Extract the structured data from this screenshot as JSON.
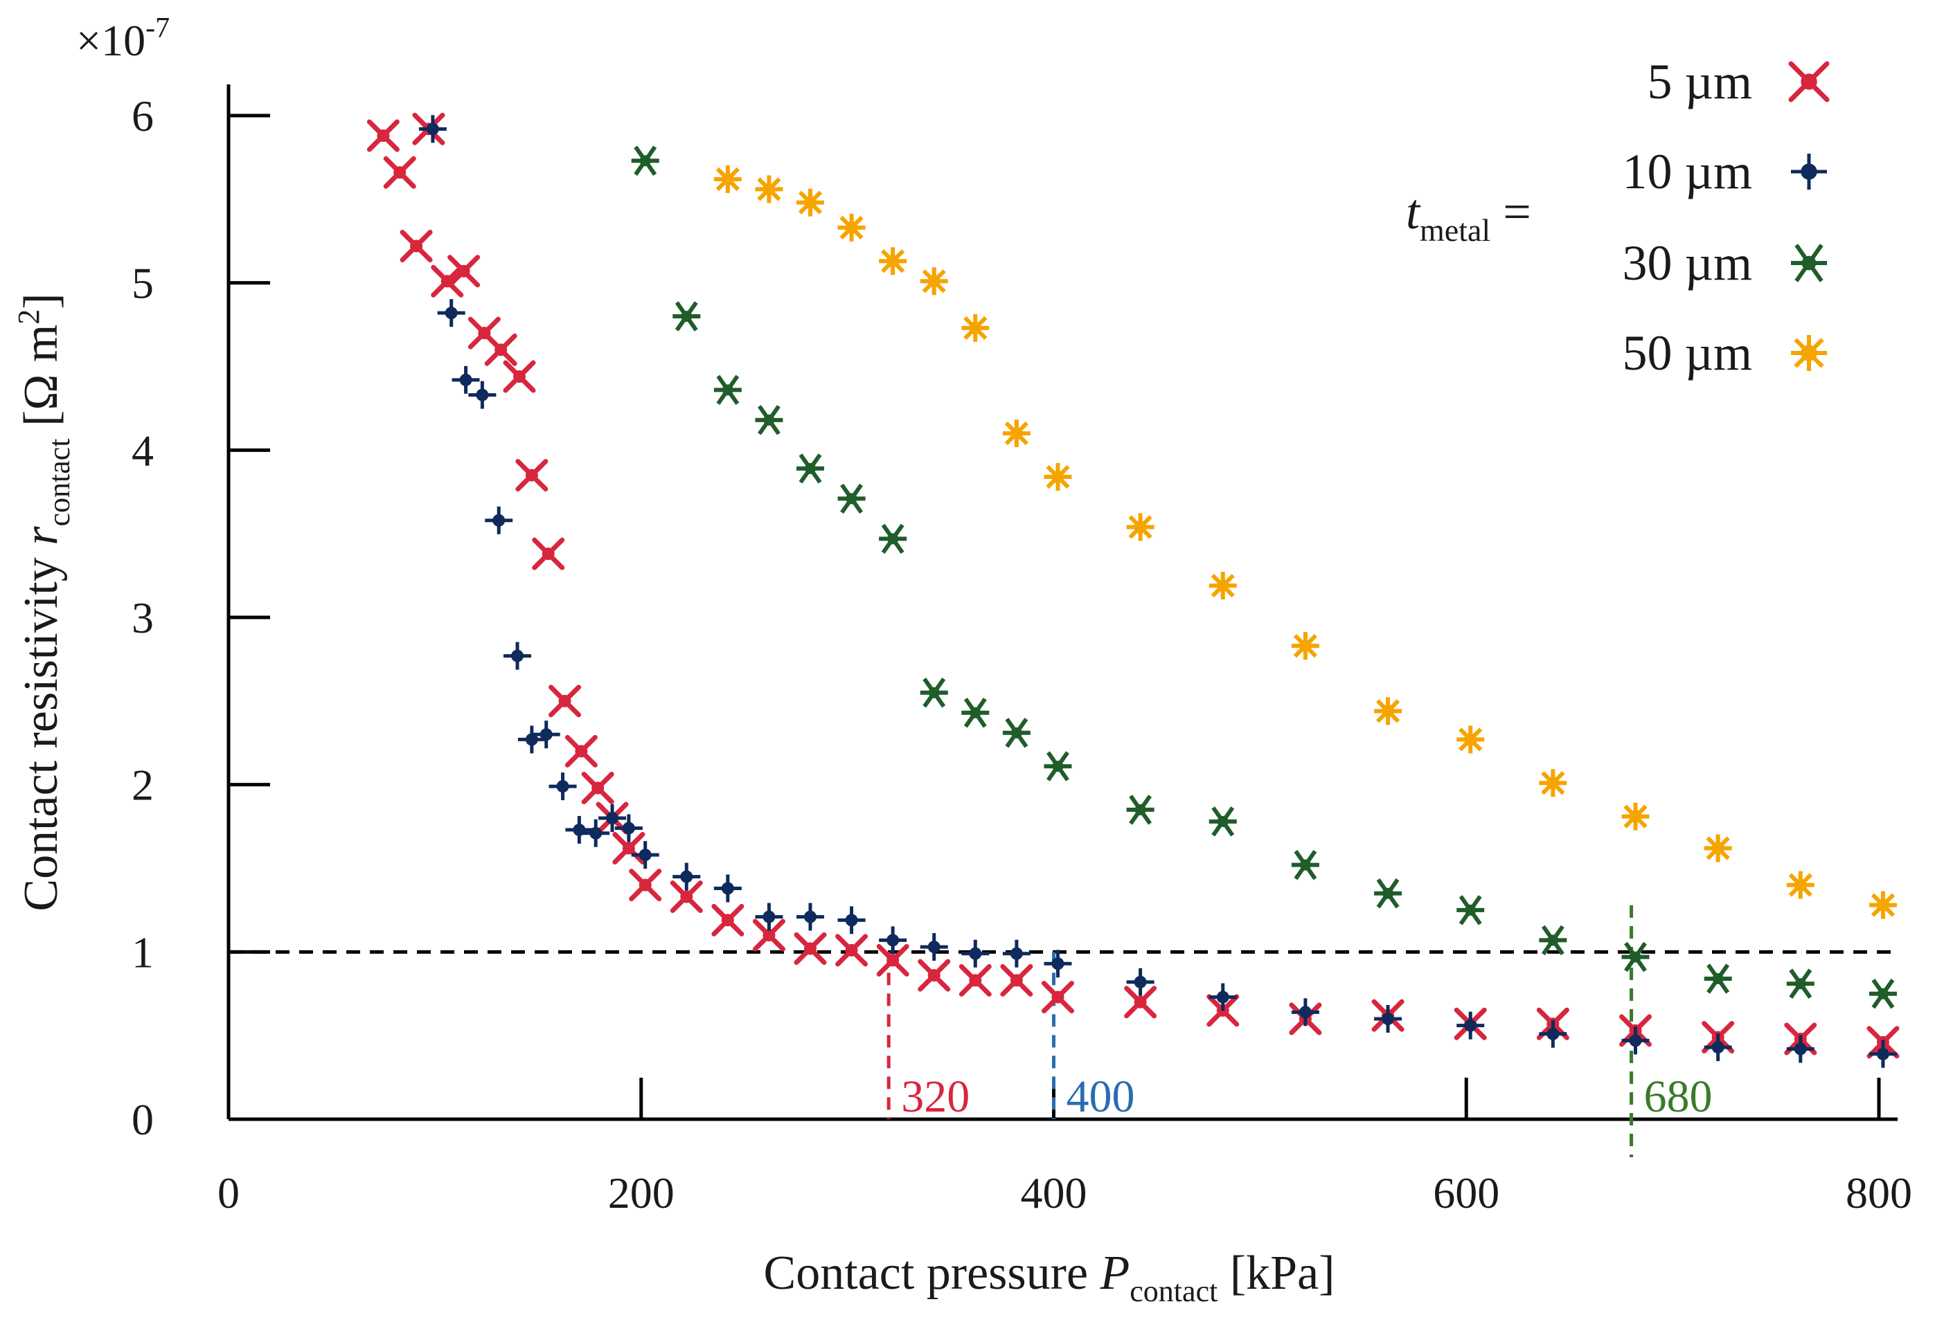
{
  "chart_data": {
    "type": "scatter",
    "multiplier_label": "×10",
    "multiplier_exponent": "-7",
    "xlabel": {
      "main": "Contact pressure  ",
      "var": "P",
      "sub": "contact",
      "unit": "  [kPa]"
    },
    "ylabel": {
      "main": "Contact resistivity  ",
      "var": "r",
      "sub": "contact",
      "unit": "  [Ω m",
      "unit_sup": "2",
      "unit_end": "]"
    },
    "xlim": [
      0,
      810
    ],
    "ylim": [
      0,
      6.3
    ],
    "x_ticks": [
      "0",
      "200",
      "400",
      "600",
      "800"
    ],
    "y_ticks": [
      "0",
      "1",
      "2",
      "3",
      "4",
      "5",
      "6"
    ],
    "legend_title": {
      "var": "t",
      "sub": "metal",
      "eq": " ="
    },
    "threshold": {
      "value": 1.0,
      "color": "#000000"
    },
    "series": [
      {
        "name": "5 µm",
        "marker": "x",
        "color": "#d7263d",
        "x": [
          75,
          83,
          91,
          97,
          106,
          114,
          124,
          132,
          141,
          147,
          155,
          163,
          171,
          179,
          186,
          194,
          202,
          222,
          242,
          262,
          282,
          302,
          322,
          342,
          362,
          382,
          402,
          442,
          482,
          522,
          562,
          602,
          642,
          682,
          722,
          762,
          802
        ],
        "y": [
          5.88,
          5.66,
          5.22,
          5.92,
          5.01,
          5.07,
          4.7,
          4.6,
          4.44,
          3.85,
          3.38,
          2.5,
          2.2,
          1.98,
          1.8,
          1.62,
          1.4,
          1.33,
          1.19,
          1.1,
          1.02,
          1.01,
          0.95,
          0.86,
          0.83,
          0.83,
          0.73,
          0.7,
          0.65,
          0.6,
          0.62,
          0.57,
          0.57,
          0.53,
          0.49,
          0.48,
          0.46
        ]
      },
      {
        "name": "10 µm",
        "marker": "plus",
        "color": "#0f2a5c",
        "x": [
          99,
          108,
          115,
          123,
          131,
          140,
          147,
          154,
          162,
          170,
          178,
          186,
          194,
          202,
          222,
          242,
          262,
          282,
          302,
          322,
          342,
          362,
          382,
          402,
          442,
          482,
          522,
          562,
          602,
          642,
          682,
          722,
          762,
          802
        ],
        "y": [
          5.92,
          4.82,
          4.42,
          4.33,
          3.58,
          2.77,
          2.27,
          2.3,
          1.99,
          1.73,
          1.71,
          1.8,
          1.74,
          1.58,
          1.45,
          1.38,
          1.21,
          1.21,
          1.19,
          1.07,
          1.03,
          0.99,
          0.99,
          0.93,
          0.82,
          0.73,
          0.64,
          0.6,
          0.56,
          0.51,
          0.47,
          0.43,
          0.42,
          0.39
        ]
      },
      {
        "name": "30 µm",
        "marker": "asterisk",
        "color": "#1f5d2a",
        "x": [
          202,
          222,
          242,
          262,
          282,
          302,
          322,
          342,
          362,
          382,
          402,
          442,
          482,
          522,
          562,
          602,
          642,
          682,
          722,
          762,
          802
        ],
        "y": [
          5.73,
          4.8,
          4.36,
          4.18,
          3.89,
          3.71,
          3.47,
          2.55,
          2.43,
          2.31,
          2.11,
          1.85,
          1.78,
          1.52,
          1.35,
          1.25,
          1.07,
          0.97,
          0.84,
          0.81,
          0.75
        ]
      },
      {
        "name": "50 µm",
        "marker": "star",
        "color": "#f6a400",
        "x": [
          242,
          262,
          282,
          302,
          322,
          342,
          362,
          382,
          402,
          442,
          482,
          522,
          562,
          602,
          642,
          682,
          722,
          762,
          802
        ],
        "y": [
          5.62,
          5.56,
          5.48,
          5.33,
          5.13,
          5.01,
          4.73,
          4.1,
          3.84,
          3.54,
          3.19,
          2.83,
          2.44,
          2.27,
          2.01,
          1.81,
          1.62,
          1.4,
          1.28
        ]
      }
    ],
    "annotations": [
      {
        "text": "320",
        "x": 320,
        "color": "#d7263d"
      },
      {
        "text": "400",
        "x": 400,
        "color": "#2a6cb0"
      },
      {
        "text": "680",
        "x": 680,
        "color": "#3a7a2a"
      }
    ]
  }
}
